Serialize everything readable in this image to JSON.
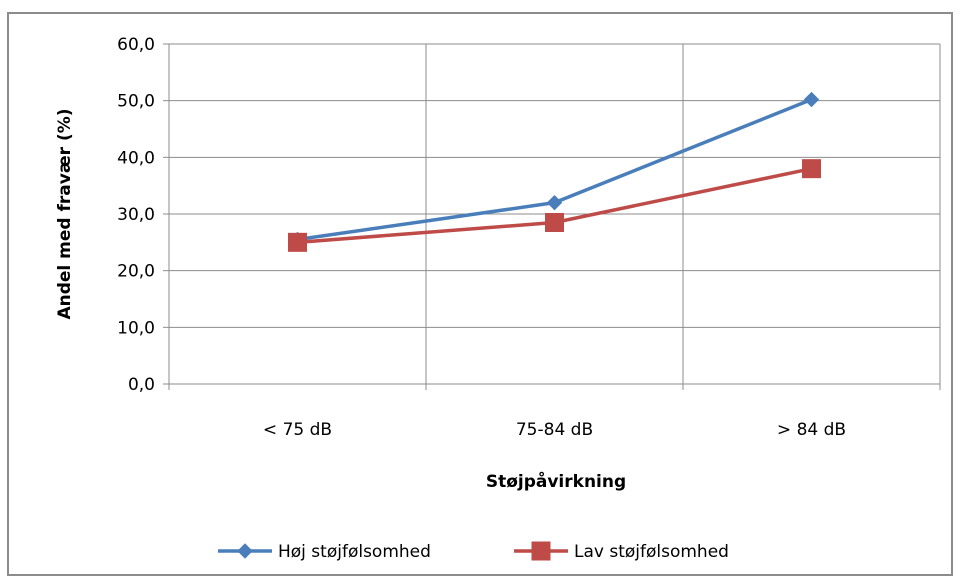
{
  "chart_data": {
    "type": "line",
    "categories": [
      "< 75 dB",
      "75-84 dB",
      "> 84 dB"
    ],
    "series": [
      {
        "name": "Høj støjfølsomhed",
        "values": [
          25.5,
          32.0,
          50.2
        ],
        "color": "#4a7ebb",
        "marker": "diamond"
      },
      {
        "name": "Lav støjfølsomhed",
        "values": [
          25.0,
          28.5,
          38.0
        ],
        "color": "#be4b48",
        "marker": "square"
      }
    ],
    "xlabel": "Støjpåvirkning",
    "ylabel": "Andel med fravær (%)",
    "ylim": [
      0,
      60
    ],
    "yticks": [
      0,
      10,
      20,
      30,
      40,
      50,
      60
    ],
    "ytick_labels": [
      "0,0",
      "10,0",
      "20,0",
      "30,0",
      "40,0",
      "50,0",
      "60,0"
    ],
    "grid": true,
    "legend_position": "bottom"
  }
}
